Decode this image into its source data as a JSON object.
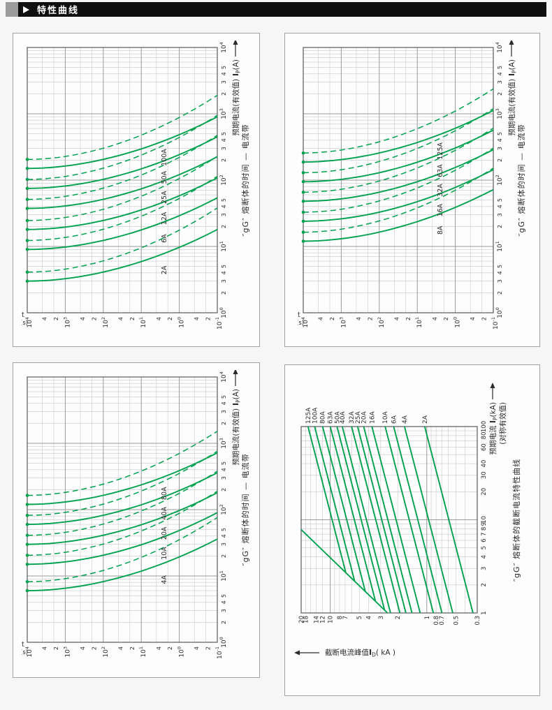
{
  "header": {
    "title": "特性曲线"
  },
  "colors": {
    "curve": "#00A24F",
    "grid_minor": "#c9c9c9",
    "grid_major": "#9a9a9a",
    "plot_border": "#5a5a5a",
    "text": "#2b2b2b",
    "page_bg": "#f6f6f6",
    "panel_bg": "#fdfdfd",
    "panel_border": "#a3a3a3",
    "header_bg": "#0f0f0f",
    "header_tab": "#9c9c9c",
    "header_text": "#ffffff"
  },
  "chart_data": [
    {
      "panel": "top-left",
      "type": "line",
      "kind": "time_current_band",
      "caption": "″gG″ 熔断体的时间 — 电流带",
      "x_axis": {
        "label": "预期电流(有效值)",
        "symbol_main": "I",
        "symbol_sub": "P",
        "symbol_unit": "(A)",
        "scale": "log",
        "min": 1,
        "max": 10000,
        "decade_exponents": [
          0,
          1,
          2,
          3,
          4
        ],
        "sub_tick_labels": [
          2,
          3,
          4,
          5
        ]
      },
      "y_axis": {
        "label_line1": "t",
        "label_line2": "(s)",
        "scale": "log",
        "min": 0.1,
        "max": 10000,
        "decade_exponents": [
          4,
          3,
          2,
          1,
          0,
          -1
        ],
        "sub_tick_labels": [
          4,
          2
        ]
      },
      "series": [
        {
          "name": "2A",
          "rating": 2,
          "solid_band_A": [
            3,
            18
          ],
          "dashed_band_A": [
            4.1,
            38
          ]
        },
        {
          "name": "6A",
          "rating": 6,
          "solid_band_A": [
            9,
            54
          ],
          "dashed_band_A": [
            12.3,
            114
          ]
        },
        {
          "name": "12A",
          "rating": 12,
          "solid_band_A": [
            18,
            108
          ],
          "dashed_band_A": [
            24.6,
            228
          ]
        },
        {
          "name": "25A",
          "rating": 25,
          "solid_band_A": [
            37.5,
            225
          ],
          "dashed_band_A": [
            51.3,
            475
          ]
        },
        {
          "name": "50A",
          "rating": 50,
          "solid_band_A": [
            75,
            450
          ],
          "dashed_band_A": [
            102.5,
            950
          ]
        },
        {
          "name": "100A",
          "rating": 100,
          "solid_band_A": [
            150,
            900
          ],
          "dashed_band_A": [
            205,
            1900
          ]
        }
      ],
      "band_model": {
        "solid_multiple_at_10000s": 1.5,
        "solid_multiple_at_0.1s": 9,
        "dashed_multiple_at_10000s": 2.05,
        "dashed_multiple_at_0.1s": 19,
        "curvature_exponent": 1.9
      }
    },
    {
      "panel": "top-right",
      "type": "line",
      "kind": "time_current_band",
      "caption": "″gG″ 熔断体的时间 — 电流带",
      "x_axis": {
        "label": "预期电流(有效值)",
        "symbol_main": "I",
        "symbol_sub": "P",
        "symbol_unit": "(A)",
        "scale": "log",
        "min": 1,
        "max": 10000,
        "decade_exponents": [
          0,
          1,
          2,
          3,
          4
        ],
        "sub_tick_labels": [
          2,
          3,
          4,
          5
        ]
      },
      "y_axis": {
        "label_line1": "t",
        "label_line2": "(s)",
        "scale": "log",
        "min": 0.1,
        "max": 10000,
        "decade_exponents": [
          4,
          3,
          2,
          1,
          0,
          -1
        ],
        "sub_tick_labels": [
          4,
          2
        ]
      },
      "series": [
        {
          "name": "8A",
          "rating": 8,
          "solid_band_A": [
            12,
            72
          ],
          "dashed_band_A": [
            16.4,
            152
          ]
        },
        {
          "name": "16A",
          "rating": 16,
          "solid_band_A": [
            24,
            144
          ],
          "dashed_band_A": [
            32.8,
            304
          ]
        },
        {
          "name": "32A",
          "rating": 32,
          "solid_band_A": [
            48,
            288
          ],
          "dashed_band_A": [
            65.6,
            608
          ]
        },
        {
          "name": "63A",
          "rating": 63,
          "solid_band_A": [
            94.5,
            567
          ],
          "dashed_band_A": [
            129,
            1197
          ]
        },
        {
          "name": "125A",
          "rating": 125,
          "solid_band_A": [
            187.5,
            1125
          ],
          "dashed_band_A": [
            256,
            2375
          ]
        }
      ],
      "band_model": {
        "solid_multiple_at_10000s": 1.5,
        "solid_multiple_at_0.1s": 9,
        "dashed_multiple_at_10000s": 2.05,
        "dashed_multiple_at_0.1s": 19,
        "curvature_exponent": 1.9
      }
    },
    {
      "panel": "bottom-left",
      "type": "line",
      "kind": "time_current_band",
      "caption": "″gG″ 熔断体的时间 — 电流带",
      "x_axis": {
        "label": "预期电流(有效值)",
        "symbol_main": "I",
        "symbol_sub": "P",
        "symbol_unit": "(A)",
        "scale": "log",
        "min": 1,
        "max": 10000,
        "decade_exponents": [
          0,
          1,
          2,
          3,
          4
        ],
        "sub_tick_labels": [
          2,
          3,
          4,
          5
        ]
      },
      "y_axis": {
        "label_line1": "t",
        "label_line2": "(s)",
        "scale": "log",
        "min": 0.1,
        "max": 10000,
        "decade_exponents": [
          4,
          3,
          2,
          1,
          0,
          -1
        ],
        "sub_tick_labels": [
          4,
          2
        ]
      },
      "series": [
        {
          "name": "4A",
          "rating": 4,
          "solid_band_A": [
            6,
            36
          ],
          "dashed_band_A": [
            8.2,
            76
          ]
        },
        {
          "name": "10A",
          "rating": 10,
          "solid_band_A": [
            15,
            90
          ],
          "dashed_band_A": [
            20.5,
            190
          ]
        },
        {
          "name": "20A",
          "rating": 20,
          "solid_band_A": [
            30,
            180
          ],
          "dashed_band_A": [
            41,
            380
          ]
        },
        {
          "name": "40A",
          "rating": 40,
          "solid_band_A": [
            60,
            360
          ],
          "dashed_band_A": [
            82,
            760
          ]
        },
        {
          "name": "80A",
          "rating": 80,
          "solid_band_A": [
            120,
            720
          ],
          "dashed_band_A": [
            164,
            1520
          ]
        }
      ],
      "band_model": {
        "solid_multiple_at_10000s": 1.5,
        "solid_multiple_at_0.1s": 9,
        "dashed_multiple_at_10000s": 2.05,
        "dashed_multiple_at_0.1s": 19,
        "curvature_exponent": 1.9
      }
    },
    {
      "panel": "bottom-right",
      "type": "line",
      "kind": "cutoff_current",
      "caption": "″gG″ 熔断体的截断电流特性曲线",
      "x_axis": {
        "label": "预期电流",
        "symbol_main": "I",
        "symbol_sub": "P",
        "symbol_unit": "(kA)",
        "label_line2": "(对称有效值)",
        "scale": "log",
        "min": 1,
        "max": 100,
        "tick_labels": [
          1,
          2,
          3,
          4,
          5,
          6,
          7,
          8,
          9,
          10,
          20,
          30,
          40,
          60,
          80,
          100
        ]
      },
      "y_axis": {
        "label": "截断电流峰值",
        "symbol_main": "I",
        "symbol_sub": "D",
        "symbol_unit": "( kA )",
        "scale": "log",
        "min": 0.3,
        "max": 20,
        "tick_labels": [
          0.3,
          0.5,
          0.7,
          0.8,
          1,
          2,
          3,
          4,
          5,
          7,
          8,
          10,
          12,
          14,
          18,
          20
        ]
      },
      "peak_line": {
        "name": "prospective-peak-line",
        "points_kA": [
          [
            1,
            2.55
          ],
          [
            7.84,
            20
          ]
        ]
      },
      "log_log_slope": 0.25,
      "series": [
        {
          "name": "125A",
          "cutoff_kA_at_100kA": 17
        },
        {
          "name": "100A",
          "cutoff_kA_at_100kA": 14.5
        },
        {
          "name": "80A",
          "cutoff_kA_at_100kA": 12
        },
        {
          "name": "63A",
          "cutoff_kA_at_100kA": 10
        },
        {
          "name": "50A",
          "cutoff_kA_at_100kA": 8.5
        },
        {
          "name": "40A",
          "cutoff_kA_at_100kA": 7.5
        },
        {
          "name": "32A",
          "cutoff_kA_at_100kA": 6
        },
        {
          "name": "25A",
          "cutoff_kA_at_100kA": 5.2
        },
        {
          "name": "20A",
          "cutoff_kA_at_100kA": 4.5
        },
        {
          "name": "16A",
          "cutoff_kA_at_100kA": 3.7
        },
        {
          "name": "10A",
          "cutoff_kA_at_100kA": 2.7
        },
        {
          "name": "6A",
          "cutoff_kA_at_100kA": 2.2
        },
        {
          "name": "4A",
          "cutoff_kA_at_100kA": 1.7
        },
        {
          "name": "2A",
          "cutoff_kA_at_100kA": 1.05
        }
      ]
    }
  ]
}
